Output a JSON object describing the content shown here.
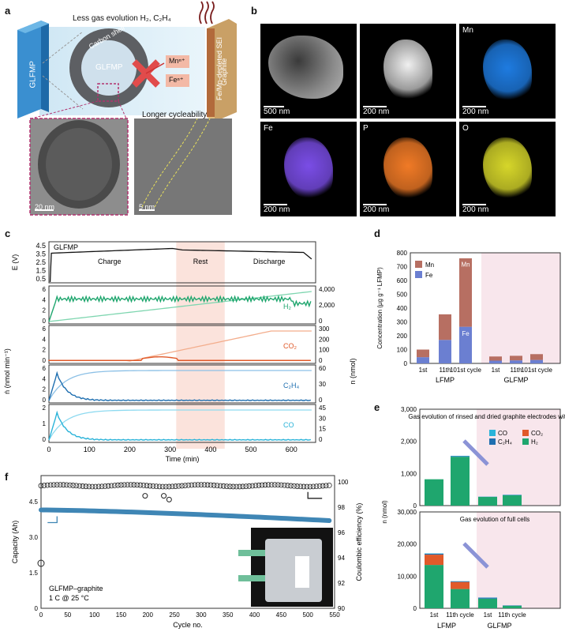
{
  "panels": {
    "a": "a",
    "b": "b",
    "c": "c",
    "d": "d",
    "e": "e",
    "f": "f"
  },
  "panel_a": {
    "top_text": "Less gas evolution H₂, C₂H₄",
    "glfmp_slab": "GLFMP",
    "carbon_shell": "Carbon shell",
    "core": "GLFMP",
    "mn_ion": "Mnⁿ⁺",
    "fe_ion": "Feⁿ⁺",
    "sei_label": "Fe/Mn-depleted SEI",
    "graphite_label": "Graphite",
    "cycle_text": "Longer cycleability",
    "sb_left": "20 nm",
    "sb_right": "5 nm"
  },
  "panel_b": {
    "tiles": [
      {
        "label": "",
        "scale": "500 nm",
        "color": "#9a9a9a"
      },
      {
        "label": "",
        "scale": "200 nm",
        "color": "#c8c8c8"
      },
      {
        "label": "Mn",
        "scale": "200 nm",
        "color": "#1e7be0"
      },
      {
        "label": "Fe",
        "scale": "200 nm",
        "color": "#7a4de6"
      },
      {
        "label": "P",
        "scale": "200 nm",
        "color": "#f07a26"
      },
      {
        "label": "O",
        "scale": "200 nm",
        "color": "#d6d62a"
      }
    ]
  },
  "panel_c": {
    "voltage_label": "GLFMP",
    "phase_charge": "Charge",
    "phase_rest": "Rest",
    "phase_discharge": "Discharge",
    "y_left_E": "E (V)",
    "y_left_rate": "ṅ (nmol min⁻¹)",
    "y_right": "n (nmol)",
    "x_label": "Time (min)",
    "x_ticks": [
      "0",
      "100",
      "200",
      "300",
      "400",
      "500",
      "600"
    ],
    "e_ticks": [
      "4.5",
      "3.5",
      "2.5",
      "1.5",
      "0.5"
    ],
    "gases": [
      {
        "name": "H₂",
        "color": "#1fa66e",
        "light": "#7fd6b0",
        "left_ticks": [
          "6",
          "4",
          "2",
          "0"
        ],
        "right_ticks": [
          "4,000",
          "2,000",
          "0"
        ]
      },
      {
        "name": "CO₂",
        "color": "#e05a2a",
        "light": "#f3ad8c",
        "left_ticks": [
          "6",
          "4",
          "2",
          "0"
        ],
        "right_ticks": [
          "300",
          "200",
          "100",
          "0"
        ]
      },
      {
        "name": "C₂H₄",
        "color": "#1f6fb0",
        "light": "#8cc0e6",
        "left_ticks": [
          "6",
          "4",
          "2",
          "0"
        ],
        "right_ticks": [
          "60",
          "30",
          "0"
        ]
      },
      {
        "name": "CO",
        "color": "#2ab3d9",
        "light": "#8edaf0",
        "left_ticks": [
          "2",
          "1",
          "0"
        ],
        "right_ticks": [
          "45",
          "30",
          "15",
          "0"
        ]
      }
    ]
  },
  "chart_data": [
    {
      "type": "bar",
      "title": "Panel d",
      "ylabel": "Concentration (µg g⁻¹ LFMP)",
      "ylim": [
        0,
        800
      ],
      "yticks": [
        "0",
        "100",
        "200",
        "300",
        "400",
        "500",
        "600",
        "700",
        "800"
      ],
      "categories": [
        "1st",
        "11th",
        "101st cycle",
        "1st",
        "11th",
        "101st cycle"
      ],
      "groups": [
        "LFMP",
        "GLFMP"
      ],
      "series": [
        {
          "name": "Fe",
          "color": "#6b7fd1",
          "values": [
            45,
            170,
            265,
            20,
            22,
            25
          ]
        },
        {
          "name": "Mn",
          "color": "#b76f62",
          "values": [
            55,
            185,
            495,
            30,
            33,
            42
          ]
        }
      ],
      "in_bar_labels": [
        "Mn",
        "Fe"
      ],
      "legend": [
        "Mn",
        "Fe"
      ]
    },
    {
      "type": "bar",
      "title": "Gas evolution of rinsed and dried graphite electrodes with SEI",
      "ylabel": "n (nmol)",
      "ylim": [
        0,
        3000
      ],
      "yticks": [
        "0",
        "1,000",
        "2,000",
        "3,000"
      ],
      "categories": [
        "1st",
        "11th cycle",
        "1st",
        "11th cycle"
      ],
      "series": [
        {
          "name": "H₂",
          "color": "#1fa66e",
          "values": [
            820,
            1520,
            270,
            320
          ]
        },
        {
          "name": "C₂H₄",
          "color": "#1f6fb0",
          "values": [
            0,
            20,
            5,
            10
          ]
        },
        {
          "name": "CO₂",
          "color": "#e05a2a",
          "values": [
            0,
            0,
            0,
            0
          ]
        },
        {
          "name": "CO",
          "color": "#2ab3d9",
          "values": [
            0,
            10,
            5,
            8
          ]
        }
      ]
    },
    {
      "type": "bar",
      "title": "Gas evolution of full cells",
      "ylabel": "n (nmol)",
      "ylim": [
        0,
        30000
      ],
      "yticks": [
        "0",
        "10,000",
        "20,000",
        "30,000"
      ],
      "categories": [
        "1st",
        "11th cycle",
        "1st",
        "11th cycle"
      ],
      "groups": [
        "LFMP",
        "GLFMP"
      ],
      "series": [
        {
          "name": "H₂",
          "color": "#1fa66e",
          "values": [
            13500,
            6000,
            3000,
            800
          ]
        },
        {
          "name": "CO₂",
          "color": "#e05a2a",
          "values": [
            3200,
            2200,
            0,
            0
          ]
        },
        {
          "name": "C₂H₄",
          "color": "#1f6fb0",
          "values": [
            300,
            200,
            300,
            100
          ]
        },
        {
          "name": "CO",
          "color": "#2ab3d9",
          "values": [
            100,
            50,
            50,
            20
          ]
        }
      ]
    },
    {
      "type": "scatter",
      "title": "Panel f",
      "xlabel": "Cycle no.",
      "ylabel": "Capacity (Ah)",
      "y2label": "Coulombic efficiency (%)",
      "xlim": [
        0,
        550
      ],
      "ylim": [
        0,
        5.6
      ],
      "y2lim": [
        90,
        100.5
      ],
      "xticks": [
        "0",
        "50",
        "100",
        "150",
        "200",
        "250",
        "300",
        "350",
        "400",
        "450",
        "500",
        "550"
      ],
      "yticks": [
        "0",
        "1.5",
        "3.0",
        "4.5"
      ],
      "y2ticks": [
        "90",
        "92",
        "94",
        "96",
        "98",
        "100"
      ],
      "capacity_start": 4.15,
      "capacity_end": 3.7,
      "ce_level": 99.7,
      "annotation": [
        "GLFMP–graphite",
        "1 C @ 25 °C"
      ]
    }
  ],
  "panel_d_groups": [
    "LFMP",
    "GLFMP"
  ],
  "panel_e_legend": [
    "CO",
    "CO₂",
    "C₂H₄",
    "H₂"
  ],
  "panel_e_groups": [
    "LFMP",
    "GLFMP"
  ]
}
